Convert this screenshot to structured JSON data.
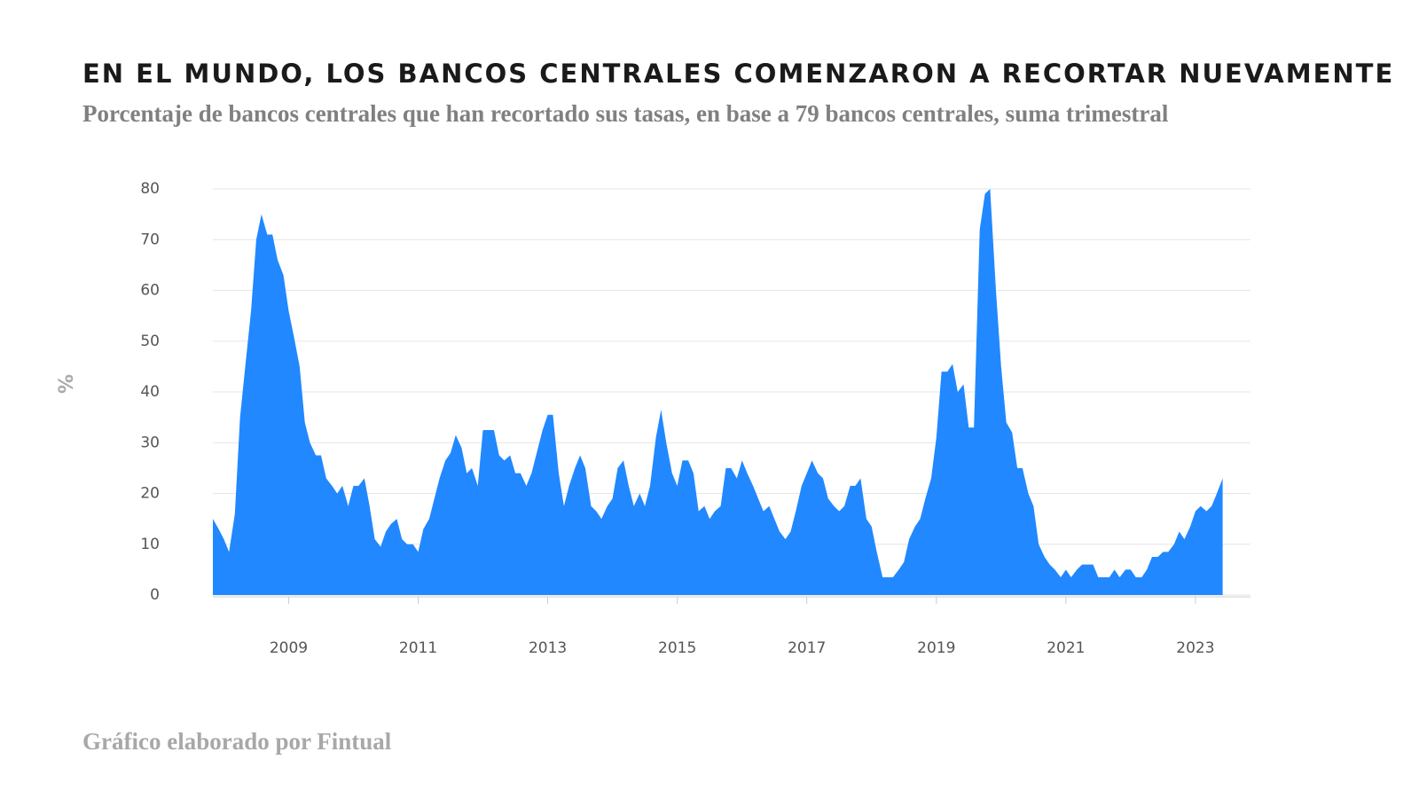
{
  "chart_data": {
    "type": "area",
    "title": "EN EL MUNDO, LOS BANCOS CENTRALES COMENZARON A RECORTAR NUEVAMENTE",
    "subtitle": "Porcentaje de bancos centrales que han recortado sus tasas, en base a 79 bancos centrales, suma trimestral",
    "footer": "Gráfico elaborado por Fintual",
    "y_label": "%",
    "color": "#2188ff",
    "grid": true,
    "xlim": [
      2008.33,
      2024.35
    ],
    "ylim": [
      0,
      80
    ],
    "yticks": [
      0,
      10,
      20,
      30,
      40,
      50,
      60,
      70,
      80
    ],
    "xticks": [
      {
        "value": 2009.5,
        "label": "2009"
      },
      {
        "value": 2011.5,
        "label": "2011"
      },
      {
        "value": 2013.5,
        "label": "2013"
      },
      {
        "value": 2015.5,
        "label": "2015"
      },
      {
        "value": 2017.5,
        "label": "2017"
      },
      {
        "value": 2019.5,
        "label": "2019"
      },
      {
        "value": 2021.5,
        "label": "2021"
      },
      {
        "value": 2023.5,
        "label": "2023"
      }
    ],
    "x": [
      2008.33,
      2008.42,
      2008.5,
      2008.58,
      2008.67,
      2008.75,
      2008.83,
      2008.92,
      2009.0,
      2009.08,
      2009.17,
      2009.25,
      2009.33,
      2009.42,
      2009.5,
      2009.58,
      2009.67,
      2009.75,
      2009.83,
      2009.92,
      2010.0,
      2010.08,
      2010.17,
      2010.25,
      2010.33,
      2010.42,
      2010.5,
      2010.58,
      2010.67,
      2010.75,
      2010.83,
      2010.92,
      2011.0,
      2011.08,
      2011.17,
      2011.25,
      2011.33,
      2011.42,
      2011.5,
      2011.58,
      2011.67,
      2011.75,
      2011.83,
      2011.92,
      2012.0,
      2012.08,
      2012.17,
      2012.25,
      2012.33,
      2012.42,
      2012.5,
      2012.58,
      2012.67,
      2012.75,
      2012.83,
      2012.92,
      2013.0,
      2013.08,
      2013.17,
      2013.25,
      2013.33,
      2013.42,
      2013.5,
      2013.58,
      2013.67,
      2013.75,
      2013.83,
      2013.92,
      2014.0,
      2014.08,
      2014.17,
      2014.25,
      2014.33,
      2014.42,
      2014.5,
      2014.58,
      2014.67,
      2014.75,
      2014.83,
      2014.92,
      2015.0,
      2015.08,
      2015.17,
      2015.25,
      2015.33,
      2015.42,
      2015.5,
      2015.58,
      2015.67,
      2015.75,
      2015.83,
      2015.92,
      2016.0,
      2016.08,
      2016.17,
      2016.25,
      2016.33,
      2016.42,
      2016.5,
      2016.58,
      2016.67,
      2016.75,
      2016.83,
      2016.92,
      2017.0,
      2017.08,
      2017.17,
      2017.25,
      2017.33,
      2017.42,
      2017.5,
      2017.58,
      2017.67,
      2017.75,
      2017.83,
      2017.92,
      2018.0,
      2018.08,
      2018.17,
      2018.25,
      2018.33,
      2018.42,
      2018.5,
      2018.58,
      2018.67,
      2018.75,
      2018.83,
      2018.92,
      2019.0,
      2019.08,
      2019.17,
      2019.25,
      2019.33,
      2019.42,
      2019.5,
      2019.58,
      2019.67,
      2019.75,
      2019.83,
      2019.92,
      2020.0,
      2020.08,
      2020.17,
      2020.25,
      2020.33,
      2020.42,
      2020.5,
      2020.58,
      2020.67,
      2020.75,
      2020.83,
      2020.92,
      2021.0,
      2021.08,
      2021.17,
      2021.25,
      2021.33,
      2021.42,
      2021.5,
      2021.58,
      2021.67,
      2021.75,
      2021.83,
      2021.92,
      2022.0,
      2022.08,
      2022.17,
      2022.25,
      2022.33,
      2022.42,
      2022.5,
      2022.58,
      2022.67,
      2022.75,
      2022.83,
      2022.92,
      2023.0,
      2023.08,
      2023.17,
      2023.25,
      2023.33,
      2023.42,
      2023.5,
      2023.58,
      2023.67,
      2023.75,
      2023.83,
      2023.92
    ],
    "values": [
      15,
      13,
      11,
      8.5,
      16,
      35,
      45,
      56,
      70,
      75,
      71,
      71,
      66,
      63,
      56,
      51,
      45,
      34,
      30,
      27.5,
      27.5,
      23,
      21.5,
      20,
      21.5,
      17.5,
      21.5,
      21.5,
      23,
      17.5,
      11,
      9.5,
      12.5,
      14,
      15,
      11,
      10,
      10,
      8.5,
      13,
      15,
      19,
      23,
      26.5,
      28,
      31.5,
      29,
      24,
      25,
      21.5,
      32.5,
      32.5,
      32.5,
      27.5,
      26.5,
      27.5,
      24,
      24,
      21.5,
      24,
      28,
      32.5,
      35.5,
      35.5,
      24,
      17.5,
      21.5,
      25,
      27.5,
      25,
      17.5,
      16.5,
      15,
      17.5,
      19,
      25,
      26.5,
      21.5,
      17.5,
      20,
      17.5,
      21.5,
      31,
      36.5,
      30,
      24,
      21.5,
      26.5,
      26.5,
      24,
      16.5,
      17.5,
      15,
      16.5,
      17.5,
      25,
      25,
      23,
      26.5,
      24,
      21.5,
      19,
      16.5,
      17.5,
      15,
      12.5,
      11,
      12.5,
      16.5,
      21.5,
      24,
      26.5,
      24,
      23,
      19,
      17.5,
      16.5,
      17.5,
      21.5,
      21.5,
      23,
      15,
      13.5,
      8.5,
      3.5,
      3.5,
      3.5,
      5,
      6.5,
      11,
      13.5,
      15,
      19,
      23,
      31,
      44,
      44,
      45.5,
      40,
      41.5,
      33,
      33,
      72,
      79,
      80,
      60,
      45,
      34,
      32,
      25,
      25,
      20,
      17.5,
      10,
      7.5,
      6,
      5,
      3.5,
      5,
      3.5,
      5,
      6,
      6,
      6,
      3.5,
      3.5,
      3.5,
      5,
      3.5,
      5,
      5,
      3.5,
      3.5,
      5,
      7.5,
      7.5,
      8.5,
      8.5,
      10,
      12.5,
      11,
      13.5,
      16.5,
      17.5,
      16.5,
      17.5,
      20,
      23
    ]
  }
}
